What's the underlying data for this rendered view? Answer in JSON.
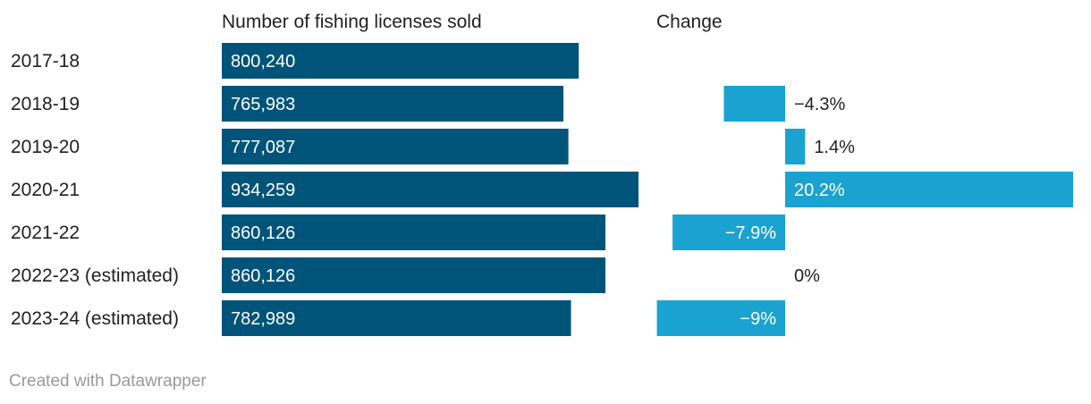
{
  "chart_data": {
    "type": "bar",
    "column_headers": [
      "Number of fishing licenses sold",
      "Change"
    ],
    "categories": [
      "2017-18",
      "2018-19",
      "2019-20",
      "2020-21",
      "2021-22",
      "2022-23 (estimated)",
      "2023-24 (estimated)"
    ],
    "series": [
      {
        "name": "Number of fishing licenses sold",
        "values": [
          800240,
          765983,
          777087,
          934259,
          860126,
          860126,
          782989
        ],
        "labels": [
          "800,240",
          "765,983",
          "777,087",
          "934,259",
          "860,126",
          "860,126",
          "782,989"
        ],
        "color": "#00547a"
      },
      {
        "name": "Change",
        "values": [
          null,
          -4.3,
          1.4,
          20.2,
          -7.9,
          0,
          -9
        ],
        "labels": [
          "",
          "−4.3%",
          "1.4%",
          "20.2%",
          "−7.9%",
          "0%",
          "−9%"
        ],
        "color": "#1aa3d0"
      }
    ]
  },
  "credit": "Created with Datawrapper"
}
